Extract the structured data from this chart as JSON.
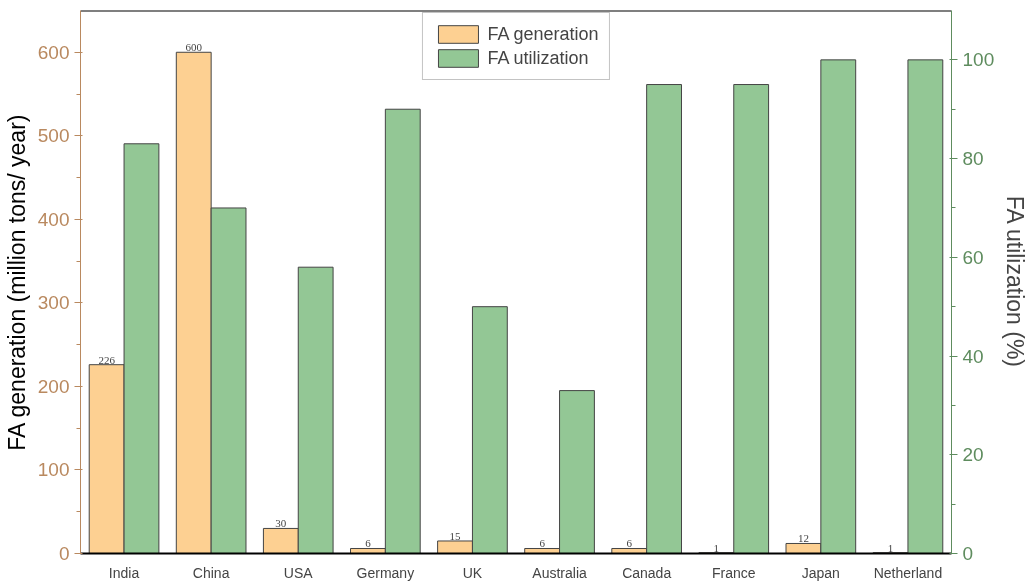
{
  "chart_data": {
    "type": "bar",
    "categories": [
      "India",
      "China",
      "USA",
      "Germany",
      "UK",
      "Australia",
      "Canada",
      "France",
      "Japan",
      "Netherland"
    ],
    "ylabel": "FA generation (million tons/ year)",
    "y2label": "FA utilization (%)",
    "ylim": [
      0,
      650
    ],
    "yticks": [
      0,
      100,
      200,
      300,
      400,
      500,
      600
    ],
    "y2lim": [
      0,
      110
    ],
    "y2ticks": [
      0,
      20,
      40,
      60,
      80,
      100
    ],
    "legend": "top",
    "grid": false,
    "series": [
      {
        "name": "FA generation",
        "color": "#fdd092",
        "values": [
          226,
          600,
          30,
          6,
          15,
          6,
          6,
          1,
          12,
          1
        ],
        "value_labels": [
          "226",
          "600",
          "30",
          "6",
          "15",
          "6",
          "6",
          "1",
          "12",
          "1"
        ]
      },
      {
        "name": "FA utilization",
        "color": "#93c795",
        "axis": "y2",
        "values": [
          83,
          70,
          58,
          90,
          50,
          33,
          95,
          95,
          100,
          100
        ]
      }
    ]
  }
}
